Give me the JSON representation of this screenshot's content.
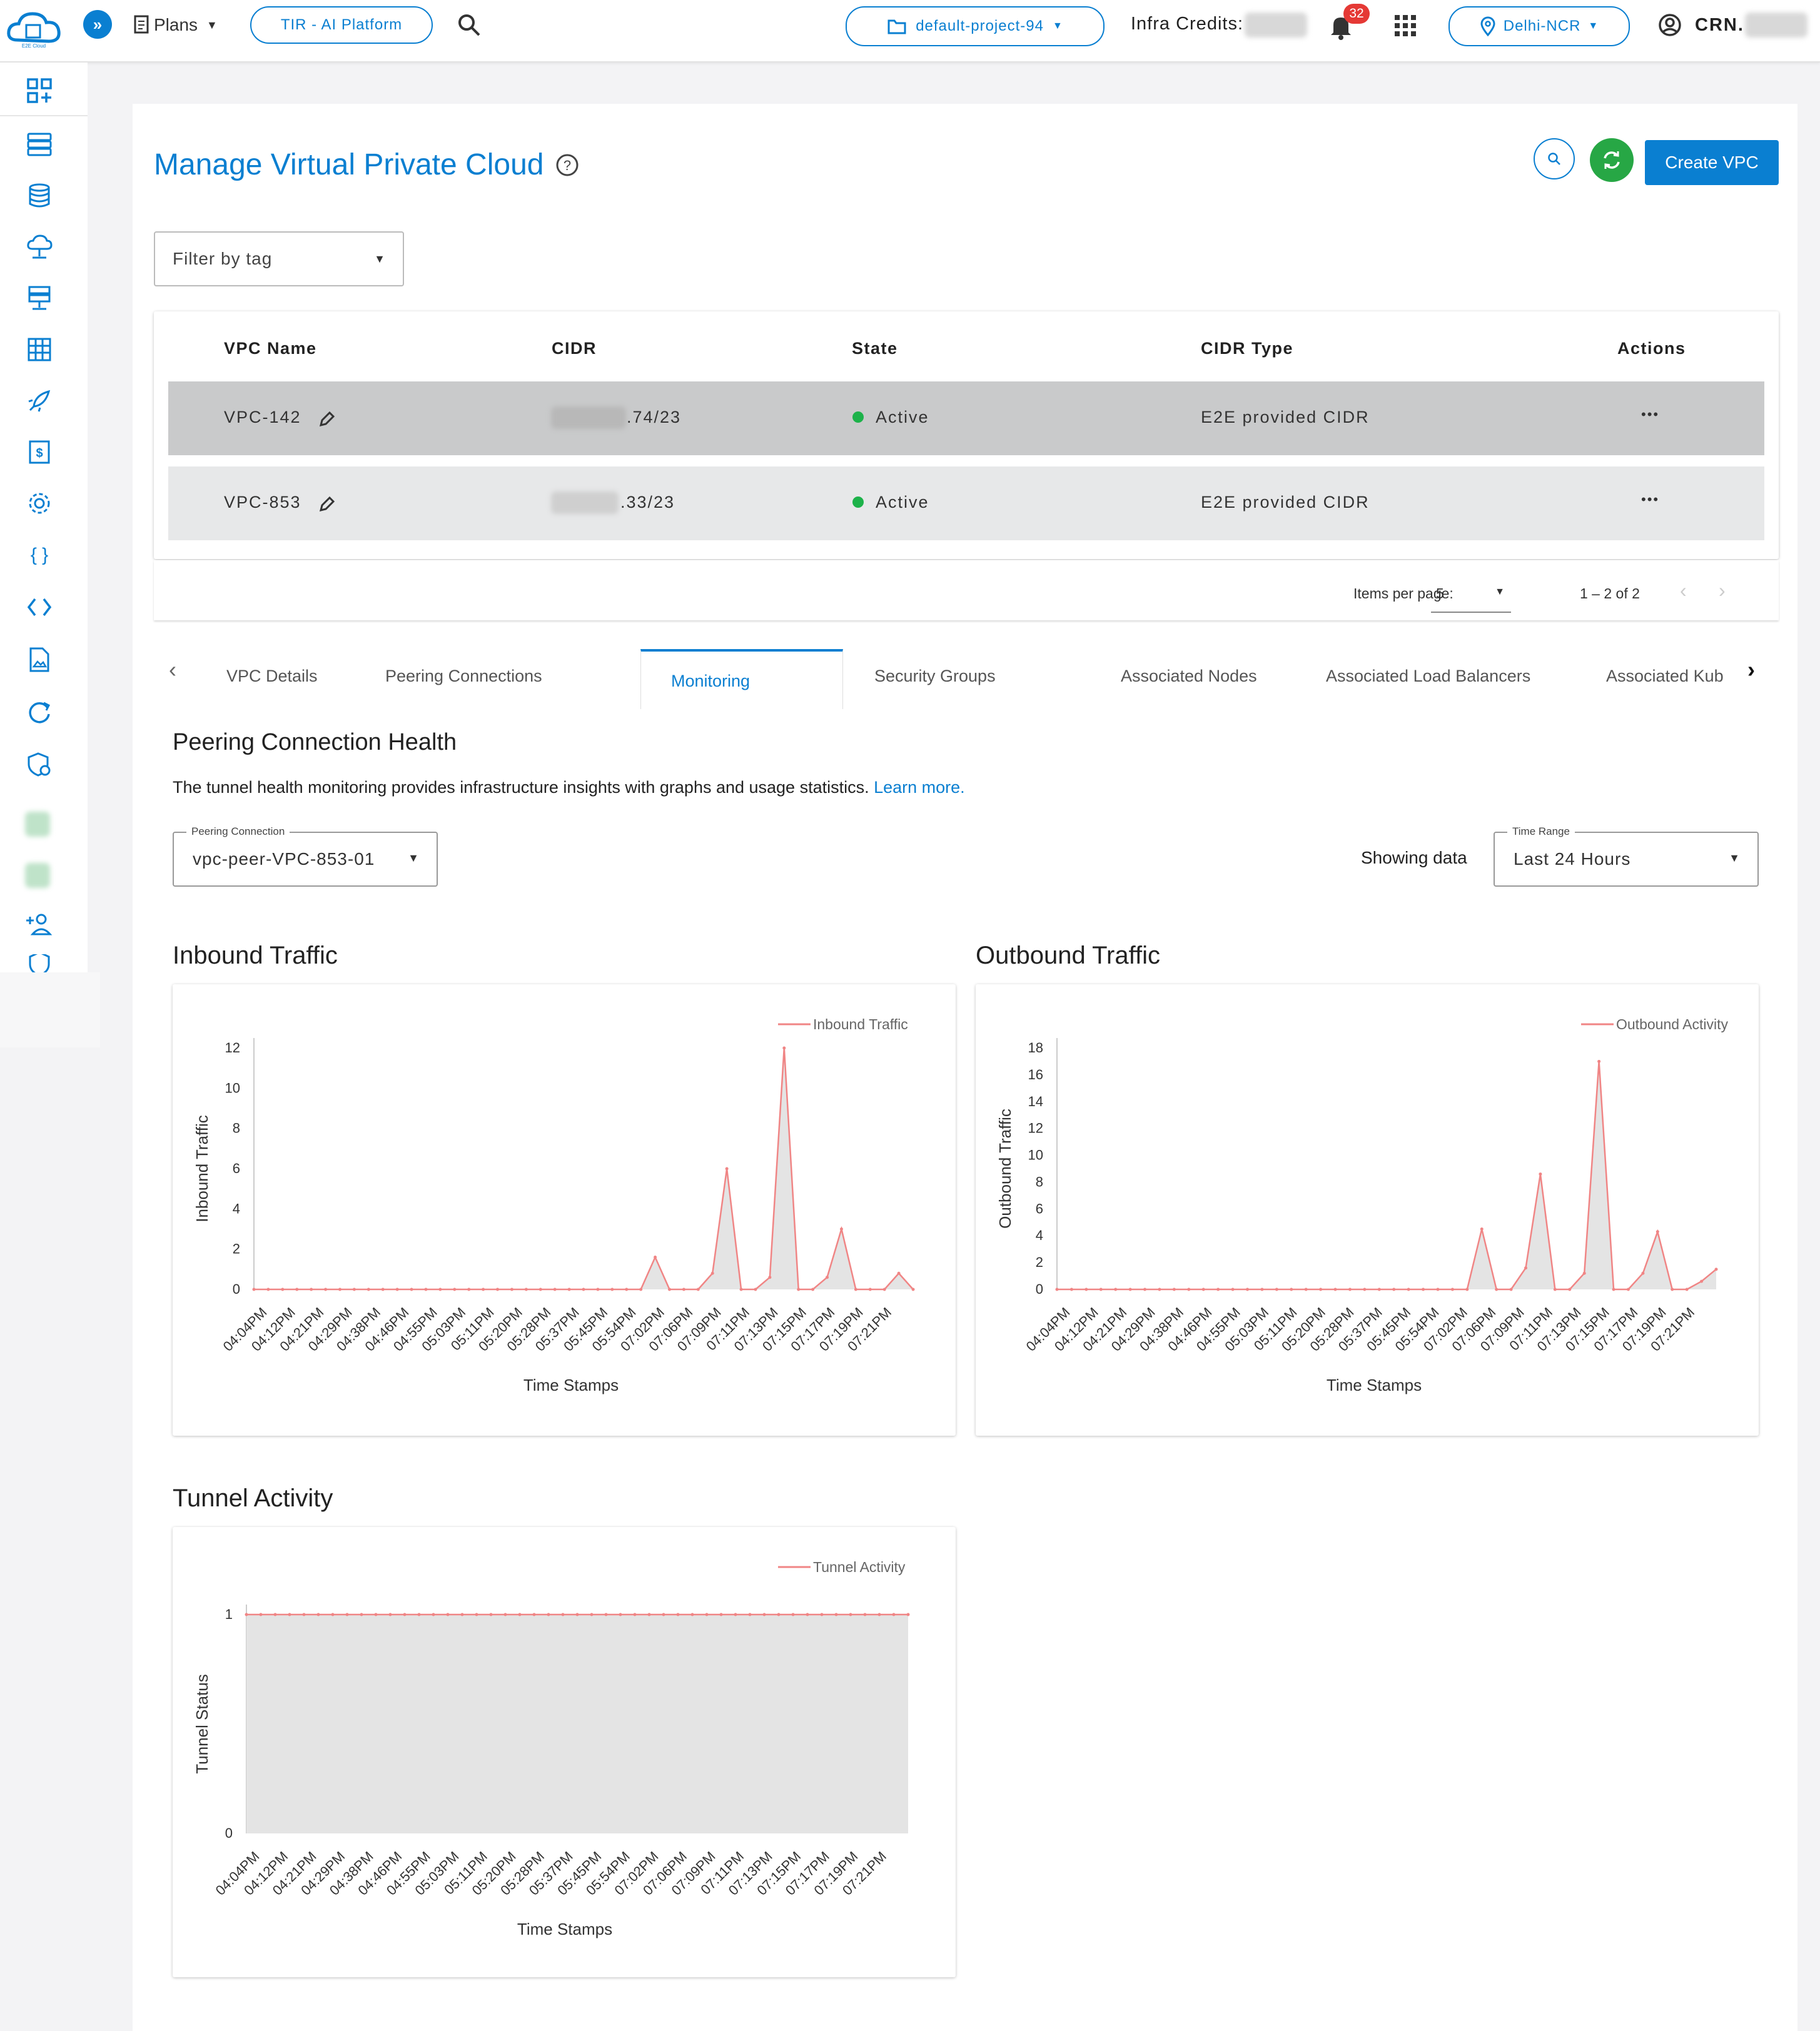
{
  "topbar": {
    "plans_label": "Plans",
    "platform_label": "TIR - AI Platform",
    "project_label": "default-project-94",
    "infra_credits_label": "Infra Credits:",
    "notification_count": "32",
    "region_label": "Delhi-NCR",
    "crn_label": "CRN."
  },
  "page": {
    "title": "Manage Virtual Private Cloud",
    "create_button": "Create VPC",
    "filter_placeholder": "Filter by tag"
  },
  "table": {
    "headers": [
      "VPC Name",
      "CIDR",
      "State",
      "CIDR Type",
      "Actions"
    ],
    "rows": [
      {
        "name": "VPC-142",
        "cidr_suffix": ".74/23",
        "state": "Active",
        "cidr_type": "E2E provided CIDR",
        "actions": "•••"
      },
      {
        "name": "VPC-853",
        "cidr_suffix": ".33/23",
        "state": "Active",
        "cidr_type": "E2E provided CIDR",
        "actions": "•••"
      }
    ],
    "items_per_page_label": "Items per page:",
    "items_per_page_value": "5",
    "range_label": "1 – 2 of 2"
  },
  "tabs": [
    "VPC Details",
    "Peering Connections",
    "Monitoring",
    "Security Groups",
    "Associated Nodes",
    "Associated Load Balancers",
    "Associated Kub"
  ],
  "active_tab": "Monitoring",
  "health": {
    "title": "Peering Connection Health",
    "description": "The tunnel health monitoring provides infrastructure insights with graphs and usage statistics.",
    "learn_more": "Learn more.",
    "peering_label": "Peering Connection",
    "peering_value": "vpc-peer-VPC-853-01",
    "showing_data": "Showing data",
    "time_range_label": "Time Range",
    "time_range_value": "Last 24 Hours"
  },
  "colors": {
    "primary": "#0a7fd1",
    "green": "#27a745",
    "active_dot": "#1db24a",
    "line": "#f08585",
    "area": "#e4e4e4",
    "badge": "#e53935"
  },
  "chart_data": [
    {
      "type": "area",
      "section_title": "Inbound Traffic",
      "legend": "Inbound Traffic",
      "ylabel": "Inbound Traffic",
      "xlabel": "Time Stamps",
      "ylim": [
        0,
        12
      ],
      "yticks": [
        0,
        2,
        4,
        6,
        8,
        10,
        12
      ],
      "xticks": [
        "04:04PM",
        "04:12PM",
        "04:21PM",
        "04:29PM",
        "04:38PM",
        "04:46PM",
        "04:55PM",
        "05:03PM",
        "05:11PM",
        "05:20PM",
        "05:28PM",
        "05:37PM",
        "05:45PM",
        "05:54PM",
        "07:02PM",
        "07:06PM",
        "07:09PM",
        "07:11PM",
        "07:13PM",
        "07:15PM",
        "07:17PM",
        "07:19PM",
        "07:21PM"
      ],
      "values": [
        0,
        0,
        0,
        0,
        0,
        0,
        0,
        0,
        0,
        0,
        0,
        0,
        0,
        0,
        0,
        0,
        0,
        0,
        0,
        0,
        0,
        0,
        0,
        0,
        0,
        0,
        0,
        0,
        1.6,
        0,
        0,
        0,
        0.8,
        6,
        0,
        0,
        0.6,
        12,
        0,
        0,
        0.6,
        3,
        0,
        0,
        0,
        0.8,
        0
      ]
    },
    {
      "type": "area",
      "section_title": "Outbound Traffic",
      "legend": "Outbound Activity",
      "ylabel": "Outbound Traffic",
      "xlabel": "Time Stamps",
      "ylim": [
        0,
        18
      ],
      "yticks": [
        0,
        2,
        4,
        6,
        8,
        10,
        12,
        14,
        16,
        18
      ],
      "xticks": [
        "04:04PM",
        "04:12PM",
        "04:21PM",
        "04:29PM",
        "04:38PM",
        "04:46PM",
        "04:55PM",
        "05:03PM",
        "05:11PM",
        "05:20PM",
        "05:28PM",
        "05:37PM",
        "05:45PM",
        "05:54PM",
        "07:02PM",
        "07:06PM",
        "07:09PM",
        "07:11PM",
        "07:13PM",
        "07:15PM",
        "07:17PM",
        "07:19PM",
        "07:21PM"
      ],
      "values": [
        0,
        0,
        0,
        0,
        0,
        0,
        0,
        0,
        0,
        0,
        0,
        0,
        0,
        0,
        0,
        0,
        0,
        0,
        0,
        0,
        0,
        0,
        0,
        0,
        0,
        0,
        0,
        0,
        0,
        4.5,
        0,
        0,
        1.6,
        8.6,
        0,
        0,
        1.2,
        17,
        0,
        0,
        1.2,
        4.3,
        0,
        0,
        0.6,
        1.5
      ]
    },
    {
      "type": "area",
      "section_title": "Tunnel Activity",
      "legend": "Tunnel Activity",
      "ylabel": "Tunnel Status",
      "xlabel": "Time Stamps",
      "ylim": [
        0,
        1
      ],
      "yticks": [
        0,
        1
      ],
      "xticks": [
        "04:04PM",
        "04:12PM",
        "04:21PM",
        "04:29PM",
        "04:38PM",
        "04:46PM",
        "04:55PM",
        "05:03PM",
        "05:11PM",
        "05:20PM",
        "05:28PM",
        "05:37PM",
        "05:45PM",
        "05:54PM",
        "07:02PM",
        "07:06PM",
        "07:09PM",
        "07:11PM",
        "07:13PM",
        "07:15PM",
        "07:17PM",
        "07:19PM",
        "07:21PM"
      ],
      "values": [
        1,
        1,
        1,
        1,
        1,
        1,
        1,
        1,
        1,
        1,
        1,
        1,
        1,
        1,
        1,
        1,
        1,
        1,
        1,
        1,
        1,
        1,
        1,
        1,
        1,
        1,
        1,
        1,
        1,
        1,
        1,
        1,
        1,
        1,
        1,
        1,
        1,
        1,
        1,
        1,
        1,
        1,
        1,
        1,
        1,
        1,
        1
      ]
    }
  ]
}
